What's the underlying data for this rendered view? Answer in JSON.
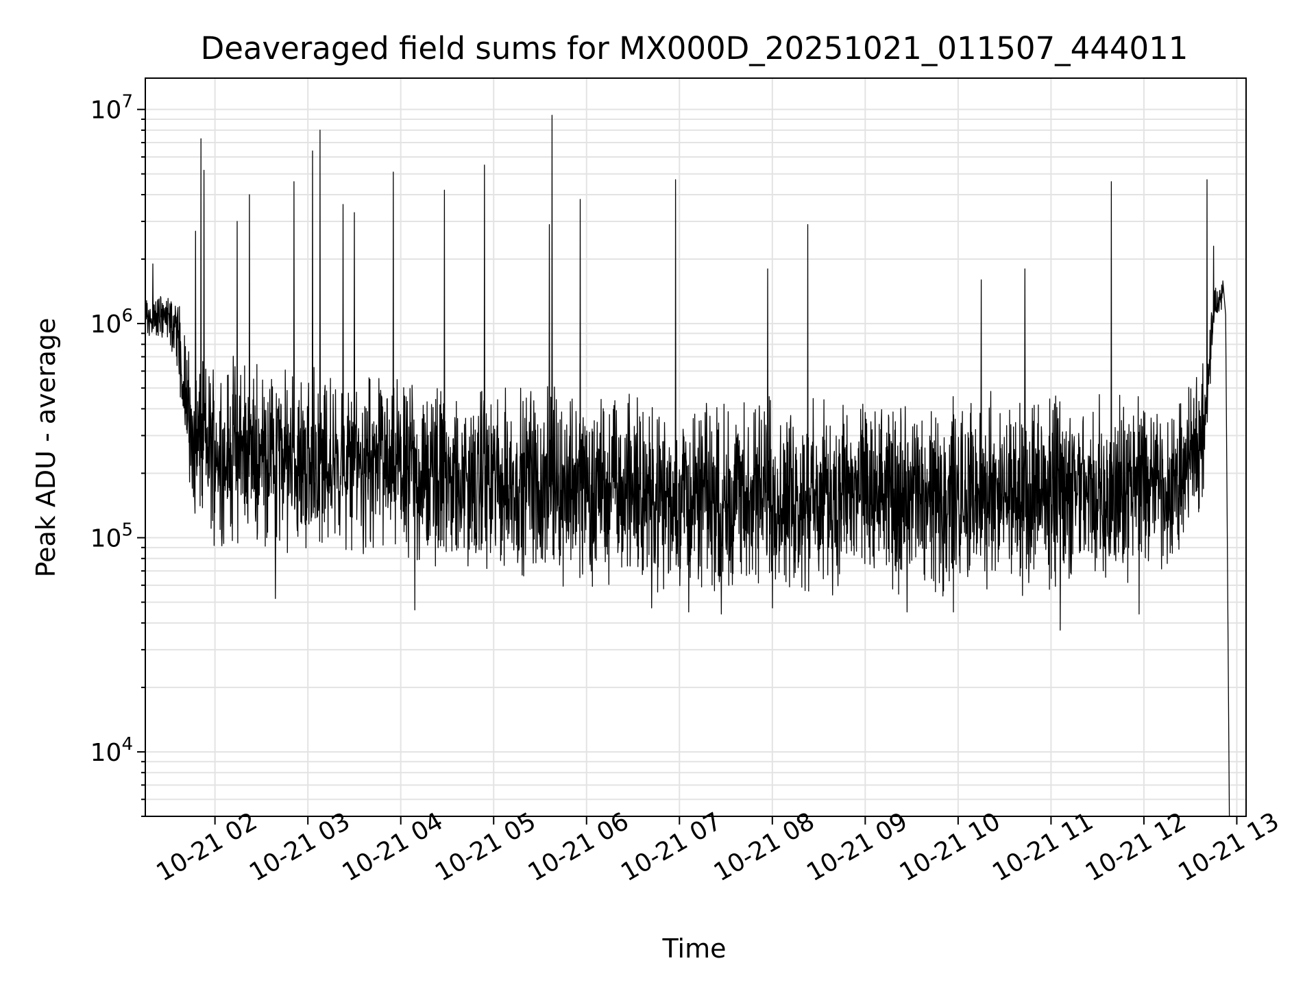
{
  "chart_data": {
    "type": "line",
    "title": "Deaveraged field sums for MX000D_20251021_011507_444011",
    "xlabel": "Time",
    "ylabel": "Peak ADU - average",
    "yscale": "log",
    "ylim": [
      5000,
      14000000
    ],
    "xlim_hours": [
      1.25,
      13.1
    ],
    "grid": true,
    "x_ticks": [
      {
        "hour": 2,
        "label": "10-21 02"
      },
      {
        "hour": 3,
        "label": "10-21 03"
      },
      {
        "hour": 4,
        "label": "10-21 04"
      },
      {
        "hour": 5,
        "label": "10-21 05"
      },
      {
        "hour": 6,
        "label": "10-21 06"
      },
      {
        "hour": 7,
        "label": "10-21 07"
      },
      {
        "hour": 8,
        "label": "10-21 08"
      },
      {
        "hour": 9,
        "label": "10-21 09"
      },
      {
        "hour": 10,
        "label": "10-21 10"
      },
      {
        "hour": 11,
        "label": "10-21 11"
      },
      {
        "hour": 12,
        "label": "10-21 12"
      },
      {
        "hour": 13,
        "label": "10-21 13"
      }
    ],
    "y_ticks": [
      {
        "value": 10000,
        "base": "10",
        "exp": "4"
      },
      {
        "value": 100000,
        "base": "10",
        "exp": "5"
      },
      {
        "value": 1000000,
        "base": "10",
        "exp": "6"
      },
      {
        "value": 10000000,
        "base": "10",
        "exp": "7"
      }
    ],
    "series": [
      {
        "name": "field sums",
        "color": "#000000",
        "envelope": [
          {
            "t": 1.26,
            "low": 800000,
            "high": 1400000
          },
          {
            "t": 1.45,
            "low": 800000,
            "high": 1500000
          },
          {
            "t": 1.6,
            "low": 600000,
            "high": 1400000
          },
          {
            "t": 1.75,
            "low": 110000,
            "high": 700000
          },
          {
            "t": 2.0,
            "low": 90000,
            "high": 800000
          },
          {
            "t": 2.5,
            "low": 85000,
            "high": 700000
          },
          {
            "t": 3.0,
            "low": 80000,
            "high": 650000
          },
          {
            "t": 3.5,
            "low": 80000,
            "high": 600000
          },
          {
            "t": 4.0,
            "low": 70000,
            "high": 600000
          },
          {
            "t": 4.5,
            "low": 70000,
            "high": 550000
          },
          {
            "t": 4.9,
            "low": 65000,
            "high": 550000
          },
          {
            "t": 5.5,
            "low": 60000,
            "high": 550000
          },
          {
            "t": 6.0,
            "low": 58000,
            "high": 520000
          },
          {
            "t": 6.5,
            "low": 55000,
            "high": 480000
          },
          {
            "t": 7.0,
            "low": 52000,
            "high": 470000
          },
          {
            "t": 8.0,
            "low": 52000,
            "high": 470000
          },
          {
            "t": 9.0,
            "low": 52000,
            "high": 470000
          },
          {
            "t": 10.0,
            "low": 52000,
            "high": 480000
          },
          {
            "t": 10.7,
            "low": 52000,
            "high": 520000
          },
          {
            "t": 11.0,
            "low": 55000,
            "high": 500000
          },
          {
            "t": 11.5,
            "low": 55000,
            "high": 480000
          },
          {
            "t": 12.0,
            "low": 60000,
            "high": 500000
          },
          {
            "t": 12.4,
            "low": 70000,
            "high": 500000
          },
          {
            "t": 12.65,
            "low": 150000,
            "high": 700000
          },
          {
            "t": 12.75,
            "low": 900000,
            "high": 1500000
          },
          {
            "t": 12.85,
            "low": 1200000,
            "high": 1700000
          }
        ],
        "spikes": [
          {
            "t": 1.33,
            "v": 1900000
          },
          {
            "t": 1.85,
            "v": 7300000
          },
          {
            "t": 1.88,
            "v": 5200000
          },
          {
            "t": 1.79,
            "v": 2700000
          },
          {
            "t": 2.37,
            "v": 4000000
          },
          {
            "t": 2.24,
            "v": 3000000
          },
          {
            "t": 2.85,
            "v": 4600000
          },
          {
            "t": 3.05,
            "v": 6400000
          },
          {
            "t": 3.13,
            "v": 8000000
          },
          {
            "t": 3.38,
            "v": 3600000
          },
          {
            "t": 3.5,
            "v": 3300000
          },
          {
            "t": 3.92,
            "v": 5100000
          },
          {
            "t": 4.47,
            "v": 4200000
          },
          {
            "t": 4.9,
            "v": 5500000
          },
          {
            "t": 5.6,
            "v": 2900000
          },
          {
            "t": 5.63,
            "v": 9400000
          },
          {
            "t": 5.93,
            "v": 3800000
          },
          {
            "t": 6.96,
            "v": 4700000
          },
          {
            "t": 7.95,
            "v": 1800000
          },
          {
            "t": 8.38,
            "v": 2900000
          },
          {
            "t": 10.25,
            "v": 1600000
          },
          {
            "t": 10.72,
            "v": 1800000
          },
          {
            "t": 11.65,
            "v": 4600000
          },
          {
            "t": 12.68,
            "v": 4700000
          },
          {
            "t": 12.75,
            "v": 2300000
          }
        ],
        "dips": [
          {
            "t": 2.65,
            "v": 52000
          },
          {
            "t": 4.15,
            "v": 46000
          },
          {
            "t": 6.7,
            "v": 47000
          },
          {
            "t": 7.1,
            "v": 45000
          },
          {
            "t": 7.45,
            "v": 44000
          },
          {
            "t": 8.0,
            "v": 47000
          },
          {
            "t": 9.45,
            "v": 45000
          },
          {
            "t": 9.95,
            "v": 45000
          },
          {
            "t": 11.1,
            "v": 37000
          },
          {
            "t": 11.95,
            "v": 44000
          }
        ],
        "end_drop": {
          "t": 12.92,
          "v": 5000
        }
      }
    ]
  }
}
